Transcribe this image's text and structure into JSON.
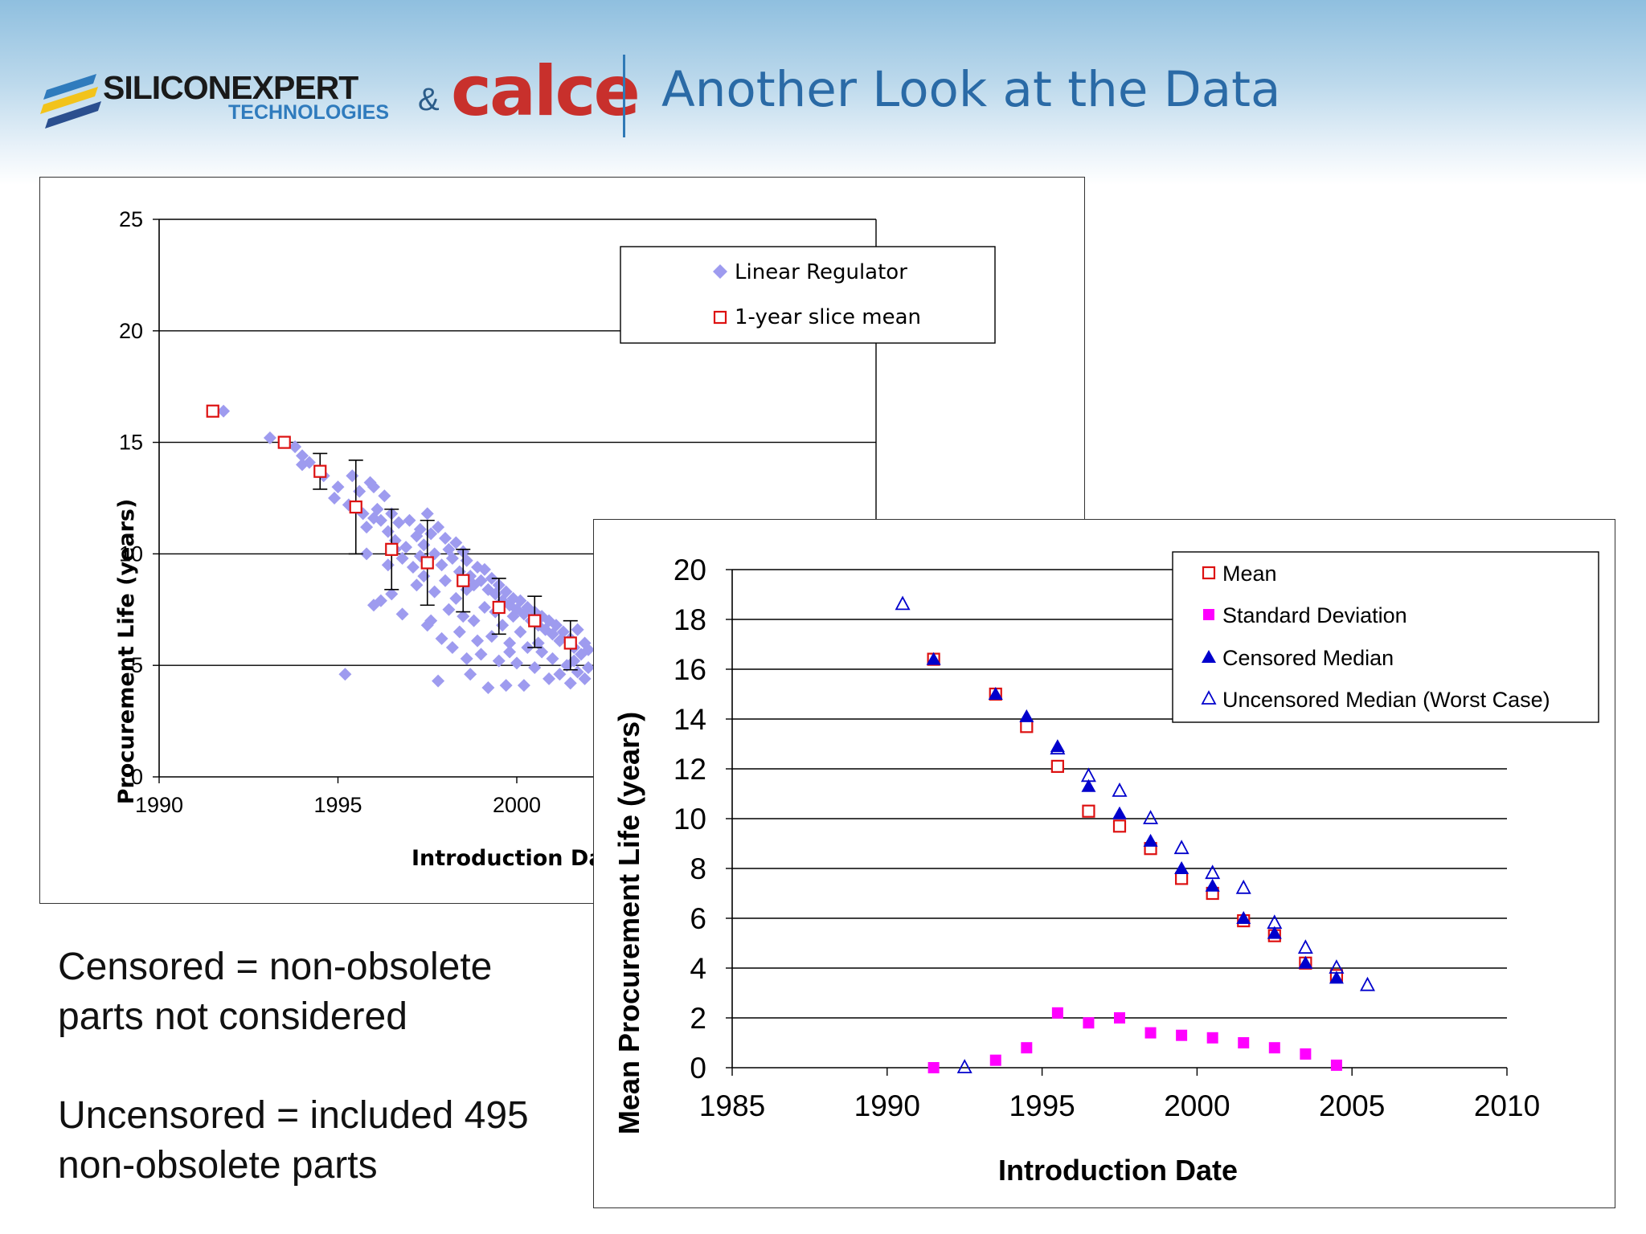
{
  "header": {
    "logo_left_name": "SILICONEXPERT",
    "logo_left_sub": "TECHNOLOGIES",
    "logo_amp": "&",
    "logo_right": "calce",
    "title": "Another Look at the Data"
  },
  "notes": {
    "censored_line1": "Censored = non-obsolete",
    "censored_line2": "parts not considered",
    "uncensored_line1": "Uncensored = included 495",
    "uncensored_line2": "non-obsolete parts"
  },
  "colors": {
    "header_title": "#2a6aa6",
    "scatter": "#9e9bef",
    "slice_mean": "#dd1111",
    "std_dev": "#ff00ff",
    "median": "#0000cc"
  },
  "chart_data": [
    {
      "type": "scatter",
      "xlabel": "Introduction Da",
      "ylabel": "Procurement Life (years)",
      "xlim": [
        1990,
        2010
      ],
      "ylim": [
        0,
        25
      ],
      "xticks": [
        1990,
        1995,
        2000
      ],
      "yticks": [
        0,
        5,
        10,
        15,
        20,
        25
      ],
      "grid": "horizontal",
      "legend_position": "top-right",
      "series": [
        {
          "name": "Linear Regulator",
          "marker": "diamond",
          "points": [
            [
              1991.8,
              16.4
            ],
            [
              1993.1,
              15.2
            ],
            [
              1993.8,
              14.8
            ],
            [
              1994.0,
              14.4
            ],
            [
              1994.2,
              14.1
            ],
            [
              1994.6,
              13.5
            ],
            [
              1994.9,
              12.5
            ],
            [
              1995.0,
              13.0
            ],
            [
              1995.4,
              13.5
            ],
            [
              1995.2,
              4.6
            ],
            [
              1995.6,
              12.8
            ],
            [
              1995.7,
              11.8
            ],
            [
              1995.8,
              11.2
            ],
            [
              1995.8,
              10.0
            ],
            [
              1995.9,
              13.2
            ],
            [
              1996.0,
              13.0
            ],
            [
              1996.0,
              11.6
            ],
            [
              1996.1,
              12.0
            ],
            [
              1996.2,
              11.5
            ],
            [
              1996.3,
              12.6
            ],
            [
              1996.4,
              11.0
            ],
            [
              1996.4,
              9.5
            ],
            [
              1996.5,
              11.8
            ],
            [
              1996.5,
              8.2
            ],
            [
              1996.6,
              10.6
            ],
            [
              1996.7,
              11.4
            ],
            [
              1996.8,
              9.8
            ],
            [
              1996.8,
              7.3
            ],
            [
              1996.9,
              10.3
            ],
            [
              1996.0,
              7.7
            ],
            [
              1996.2,
              7.9
            ],
            [
              1997.0,
              11.5
            ],
            [
              1997.1,
              9.4
            ],
            [
              1997.2,
              10.8
            ],
            [
              1997.2,
              8.6
            ],
            [
              1997.3,
              11.1
            ],
            [
              1997.4,
              10.4
            ],
            [
              1997.4,
              9.0
            ],
            [
              1997.5,
              11.8
            ],
            [
              1997.5,
              6.8
            ],
            [
              1997.6,
              10.9
            ],
            [
              1997.6,
              7.0
            ],
            [
              1997.7,
              10.0
            ],
            [
              1997.7,
              8.3
            ],
            [
              1997.8,
              11.2
            ],
            [
              1997.8,
              4.3
            ],
            [
              1997.9,
              9.5
            ],
            [
              1997.9,
              6.2
            ],
            [
              1998.0,
              10.7
            ],
            [
              1998.0,
              8.8
            ],
            [
              1998.1,
              10.2
            ],
            [
              1998.1,
              7.5
            ],
            [
              1998.2,
              9.8
            ],
            [
              1998.2,
              5.8
            ],
            [
              1998.3,
              10.5
            ],
            [
              1998.3,
              8.0
            ],
            [
              1998.4,
              9.2
            ],
            [
              1998.4,
              6.5
            ],
            [
              1998.5,
              10.1
            ],
            [
              1998.5,
              7.2
            ],
            [
              1998.6,
              9.7
            ],
            [
              1998.6,
              5.3
            ],
            [
              1998.7,
              9.0
            ],
            [
              1998.7,
              4.6
            ],
            [
              1998.8,
              8.6
            ],
            [
              1998.8,
              7.0
            ],
            [
              1998.9,
              9.4
            ],
            [
              1998.9,
              6.1
            ],
            [
              1999.0,
              8.8
            ],
            [
              1999.0,
              5.5
            ],
            [
              1999.1,
              9.3
            ],
            [
              1999.1,
              7.6
            ],
            [
              1999.2,
              8.4
            ],
            [
              1999.2,
              4.0
            ],
            [
              1999.3,
              8.9
            ],
            [
              1999.3,
              6.3
            ],
            [
              1999.4,
              8.2
            ],
            [
              1999.4,
              7.4
            ],
            [
              1999.5,
              8.6
            ],
            [
              1999.5,
              5.2
            ],
            [
              1999.6,
              7.9
            ],
            [
              1999.6,
              6.8
            ],
            [
              1999.7,
              8.3
            ],
            [
              1999.7,
              4.1
            ],
            [
              1999.8,
              7.7
            ],
            [
              1999.8,
              6.0
            ],
            [
              1999.9,
              8.0
            ],
            [
              1999.9,
              7.2
            ],
            [
              2000.0,
              7.5
            ],
            [
              2000.0,
              5.1
            ],
            [
              2000.1,
              7.9
            ],
            [
              2000.1,
              6.5
            ],
            [
              2000.2,
              7.3
            ],
            [
              2000.2,
              4.1
            ],
            [
              2000.3,
              7.6
            ],
            [
              2000.3,
              5.8
            ],
            [
              2000.4,
              7.0
            ],
            [
              2000.5,
              7.4
            ],
            [
              2000.5,
              4.9
            ],
            [
              2000.6,
              6.8
            ],
            [
              2000.7,
              7.2
            ],
            [
              2000.7,
              5.6
            ],
            [
              2000.8,
              6.6
            ],
            [
              2000.9,
              7.0
            ],
            [
              2000.9,
              4.4
            ],
            [
              2001.0,
              6.4
            ],
            [
              2001.0,
              5.3
            ],
            [
              2001.1,
              6.8
            ],
            [
              2001.2,
              6.1
            ],
            [
              2001.2,
              4.6
            ],
            [
              2001.3,
              6.5
            ],
            [
              2001.4,
              5.0
            ],
            [
              2001.5,
              6.2
            ],
            [
              2001.5,
              4.2
            ],
            [
              2001.6,
              5.8
            ],
            [
              2001.7,
              6.6
            ],
            [
              2001.7,
              4.7
            ],
            [
              2001.8,
              5.5
            ],
            [
              2001.9,
              6.0
            ],
            [
              2001.9,
              4.4
            ],
            [
              2002.0,
              5.7
            ],
            [
              2002.0,
              4.9
            ],
            [
              1994.0,
              14.0
            ],
            [
              1995.3,
              12.2
            ],
            [
              1996.6,
              10.2
            ],
            [
              1997.3,
              9.9
            ],
            [
              1998.6,
              8.4
            ],
            [
              1999.8,
              5.6
            ],
            [
              2000.6,
              6.0
            ],
            [
              2001.6,
              5.2
            ]
          ]
        },
        {
          "name": "1-year slice mean",
          "marker": "open-square",
          "points": [
            {
              "x": 1991.5,
              "y": 16.4
            },
            {
              "x": 1993.5,
              "y": 15.0
            },
            {
              "x": 1994.5,
              "y": 13.7,
              "lo": 12.9,
              "hi": 14.5
            },
            {
              "x": 1995.5,
              "y": 12.1,
              "lo": 10.0,
              "hi": 14.2
            },
            {
              "x": 1996.5,
              "y": 10.2,
              "lo": 8.4,
              "hi": 12.0
            },
            {
              "x": 1997.5,
              "y": 9.6,
              "lo": 7.7,
              "hi": 11.5
            },
            {
              "x": 1998.5,
              "y": 8.8,
              "lo": 7.4,
              "hi": 10.2
            },
            {
              "x": 1999.5,
              "y": 7.6,
              "lo": 6.4,
              "hi": 8.9
            },
            {
              "x": 2000.5,
              "y": 7.0,
              "lo": 5.8,
              "hi": 8.1
            },
            {
              "x": 2001.5,
              "y": 6.0,
              "lo": 4.8,
              "hi": 7.0
            }
          ]
        }
      ]
    },
    {
      "type": "scatter",
      "xlabel": "Introduction Date",
      "ylabel": "Mean Procurement Life (years)",
      "xlim": [
        1985,
        2010
      ],
      "ylim": [
        0,
        20
      ],
      "xticks": [
        1985,
        1990,
        1995,
        2000,
        2005,
        2010
      ],
      "yticks": [
        0,
        2,
        4,
        6,
        8,
        10,
        12,
        14,
        16,
        18,
        20
      ],
      "grid": "horizontal",
      "legend_position": "top-right",
      "series": [
        {
          "name": "Mean",
          "marker": "open-square",
          "x": [
            1991.5,
            1993.5,
            1994.5,
            1995.5,
            1996.5,
            1997.5,
            1998.5,
            1999.5,
            2000.5,
            2001.5,
            2002.5,
            2003.5,
            2004.5
          ],
          "y": [
            16.4,
            15.0,
            13.7,
            12.1,
            10.3,
            9.7,
            8.8,
            7.6,
            7.0,
            5.9,
            5.3,
            4.2,
            3.7
          ]
        },
        {
          "name": "Standard Deviation",
          "marker": "filled-square",
          "x": [
            1991.5,
            1993.5,
            1994.5,
            1995.5,
            1996.5,
            1997.5,
            1998.5,
            1999.5,
            2000.5,
            2001.5,
            2002.5,
            2003.5,
            2004.5
          ],
          "y": [
            0.0,
            0.3,
            0.8,
            2.2,
            1.8,
            2.0,
            1.4,
            1.3,
            1.2,
            1.0,
            0.8,
            0.55,
            0.1
          ]
        },
        {
          "name": "Censored Median",
          "marker": "filled-triangle",
          "x": [
            1991.5,
            1993.5,
            1994.5,
            1995.5,
            1996.5,
            1997.5,
            1998.5,
            1999.5,
            2000.5,
            2001.5,
            2002.5,
            2003.5,
            2004.5
          ],
          "y": [
            16.4,
            15.0,
            14.1,
            12.9,
            11.3,
            10.2,
            9.1,
            8.0,
            7.3,
            6.0,
            5.4,
            4.2,
            3.6
          ]
        },
        {
          "name": "Uncensored Median (Worst Case)",
          "marker": "open-triangle",
          "x": [
            1990.5,
            1992.5,
            1995.5,
            1996.5,
            1997.5,
            1998.5,
            1999.5,
            2000.5,
            2001.5,
            2002.5,
            2003.5,
            2004.5,
            2005.5
          ],
          "y": [
            18.6,
            0.0,
            12.8,
            11.7,
            11.1,
            10.0,
            8.8,
            7.8,
            7.2,
            5.8,
            4.8,
            4.0,
            3.3
          ]
        }
      ]
    }
  ]
}
